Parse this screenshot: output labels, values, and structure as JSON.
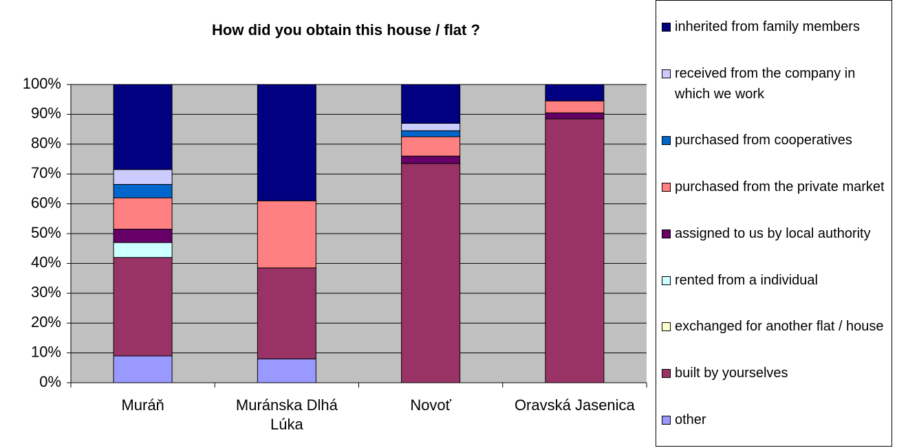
{
  "chart_data": {
    "type": "bar",
    "stacked": true,
    "title": "How did you obtain this house / flat ?",
    "categories": [
      "Muráň",
      "Muránska Dlhá Lúka",
      "Novoť",
      "Oravská Jasenica"
    ],
    "series": [
      {
        "name": "other",
        "color": "#9999ff",
        "values": [
          9,
          8,
          0,
          0
        ]
      },
      {
        "name": "built by yourselves",
        "color": "#993366",
        "values": [
          33,
          30.5,
          73.5,
          88.5
        ]
      },
      {
        "name": "exchanged for another flat / house",
        "color": "#ffffcc",
        "values": [
          0,
          0,
          0,
          0
        ]
      },
      {
        "name": "rented from a individual",
        "color": "#ccffff",
        "values": [
          5,
          0,
          0,
          0
        ]
      },
      {
        "name": "assigned to us by local authority",
        "color": "#660066",
        "values": [
          4.5,
          0,
          2.5,
          2
        ]
      },
      {
        "name": "purchased from the private market",
        "color": "#ff8080",
        "values": [
          10.5,
          22.5,
          6.5,
          4
        ]
      },
      {
        "name": "purchased from cooperatives",
        "color": "#0066cc",
        "values": [
          4.5,
          0,
          2,
          0
        ]
      },
      {
        "name": "received from the company in which we work",
        "color": "#ccccff",
        "values": [
          5,
          0,
          2.5,
          0
        ]
      },
      {
        "name": "inherited from family members",
        "color": "#000080",
        "values": [
          28.5,
          39,
          13,
          5.5
        ]
      }
    ],
    "ylim": [
      0,
      100
    ],
    "yticks": [
      {
        "value": 0,
        "label": "0%"
      },
      {
        "value": 10,
        "label": "10%"
      },
      {
        "value": 20,
        "label": "20%"
      },
      {
        "value": 30,
        "label": "30%"
      },
      {
        "value": 40,
        "label": "40%"
      },
      {
        "value": 50,
        "label": "50%"
      },
      {
        "value": 60,
        "label": "60%"
      },
      {
        "value": 70,
        "label": "70%"
      },
      {
        "value": 80,
        "label": "80%"
      },
      {
        "value": 90,
        "label": "90%"
      },
      {
        "value": 100,
        "label": "100%"
      }
    ],
    "grid": true,
    "legend": "right",
    "plot_background": "#c0c0c0"
  }
}
